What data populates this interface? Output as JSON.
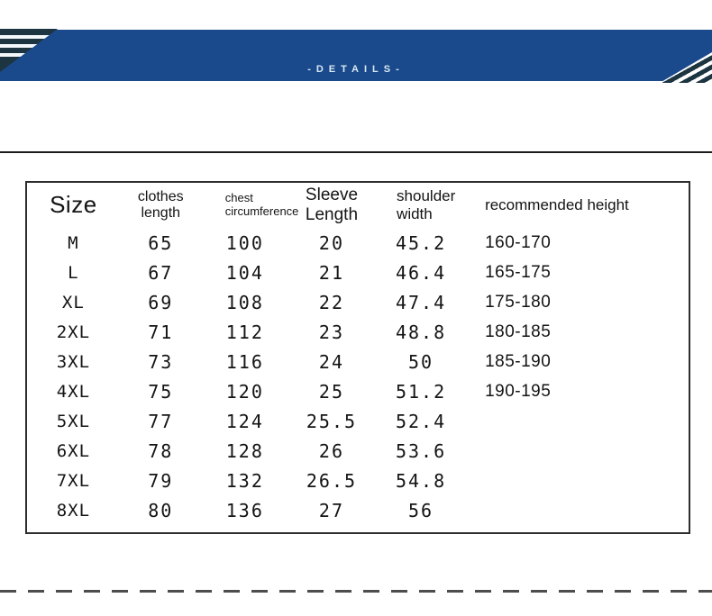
{
  "banner": {
    "label": "-DETAILS-",
    "bg_color": "#1a4a8c",
    "text_color": "#d9eaf3",
    "stripe_dark_color": "#1d3441"
  },
  "size_table": {
    "headers": [
      {
        "key": "size",
        "lines": [
          "Size"
        ]
      },
      {
        "key": "clothes-length",
        "lines": [
          "clothes",
          "length"
        ]
      },
      {
        "key": "chest-circumference",
        "lines": [
          "chest",
          "circumference"
        ]
      },
      {
        "key": "sleeve-length",
        "lines": [
          "Sleeve",
          "Length"
        ]
      },
      {
        "key": "shoulder-width",
        "lines": [
          "shoulder",
          "width"
        ]
      },
      {
        "key": "recommended-height",
        "lines": [
          "recommended height"
        ]
      }
    ],
    "rows": [
      [
        "M",
        "65",
        "100",
        "20",
        "45.2",
        "160-170"
      ],
      [
        "L",
        "67",
        "104",
        "21",
        "46.4",
        "165-175"
      ],
      [
        "XL",
        "69",
        "108",
        "22",
        "47.4",
        "175-180"
      ],
      [
        "2XL",
        "71",
        "112",
        "23",
        "48.8",
        "180-185"
      ],
      [
        "3XL",
        "73",
        "116",
        "24",
        "50",
        "185-190"
      ],
      [
        "4XL",
        "75",
        "120",
        "25",
        "51.2",
        "190-195"
      ],
      [
        "5XL",
        "77",
        "124",
        "25.5",
        "52.4",
        ""
      ],
      [
        "6XL",
        "78",
        "128",
        "26",
        "53.6",
        ""
      ],
      [
        "7XL",
        "79",
        "132",
        "26.5",
        "54.8",
        ""
      ],
      [
        "8XL",
        "80",
        "136",
        "27",
        "56",
        ""
      ]
    ]
  }
}
